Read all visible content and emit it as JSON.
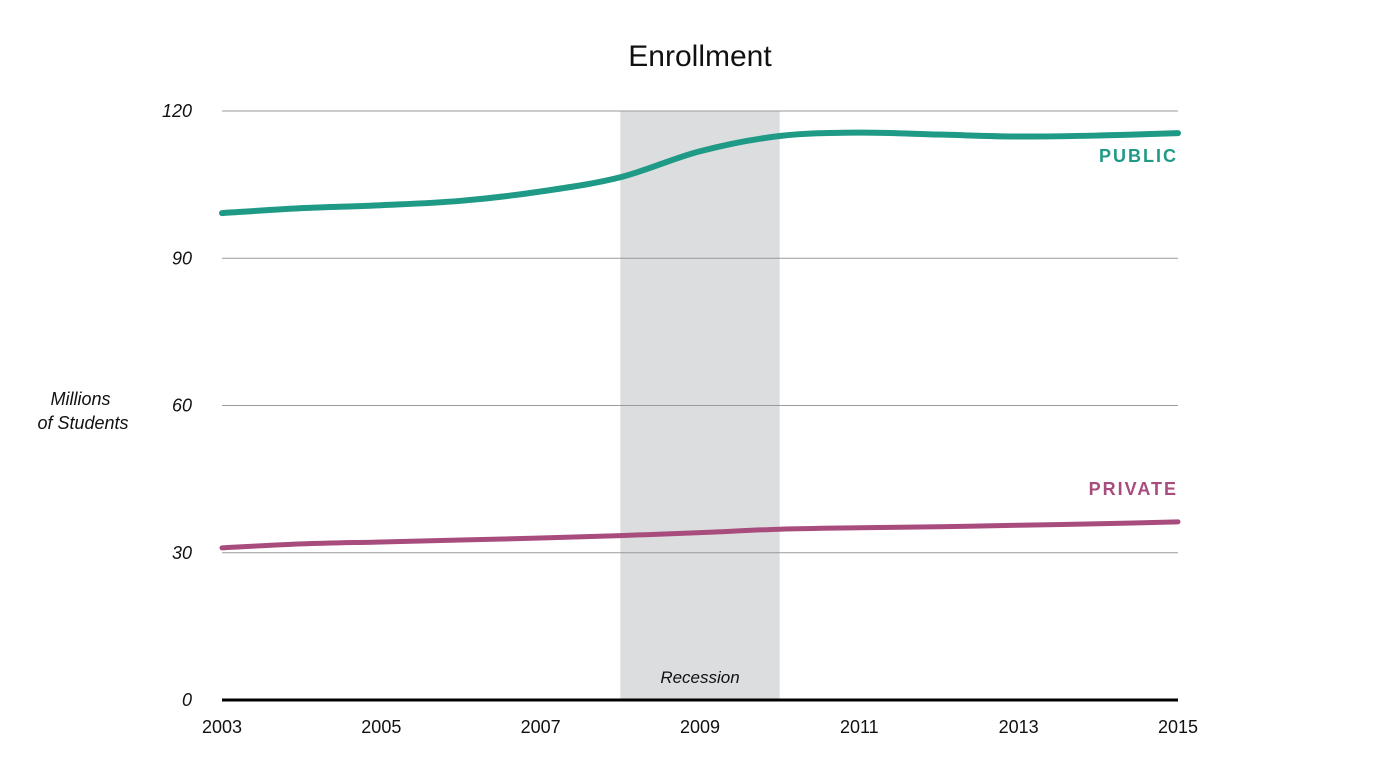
{
  "chart_data": {
    "type": "line",
    "title": "Enrollment",
    "ylabel_lines": [
      "Millions",
      "of Students"
    ],
    "xlabel": "",
    "x": [
      2003,
      2004,
      2005,
      2006,
      2007,
      2008,
      2009,
      2010,
      2011,
      2012,
      2013,
      2014,
      2015
    ],
    "xticks": [
      "2003",
      "2005",
      "2007",
      "2009",
      "2011",
      "2013",
      "2015"
    ],
    "yticks": [
      "0",
      "30",
      "60",
      "90",
      "120"
    ],
    "xlim": [
      2003,
      2015
    ],
    "ylim": [
      0,
      120
    ],
    "grid": true,
    "series": [
      {
        "name": "PUBLIC",
        "color": "#1f9a86",
        "values": [
          99.2,
          100.2,
          100.8,
          101.7,
          103.6,
          106.5,
          111.8,
          114.9,
          115.6,
          115.2,
          114.8,
          115.0,
          115.5
        ]
      },
      {
        "name": "PRIVATE",
        "color": "#a84c7e",
        "values": [
          31.0,
          31.8,
          32.2,
          32.6,
          33.0,
          33.5,
          34.1,
          34.8,
          35.1,
          35.3,
          35.6,
          35.9,
          36.3
        ]
      }
    ],
    "shaded_regions": [
      {
        "label": "Recession",
        "x_start": 2008,
        "x_end": 2010,
        "color": "#dcdddf"
      }
    ]
  }
}
